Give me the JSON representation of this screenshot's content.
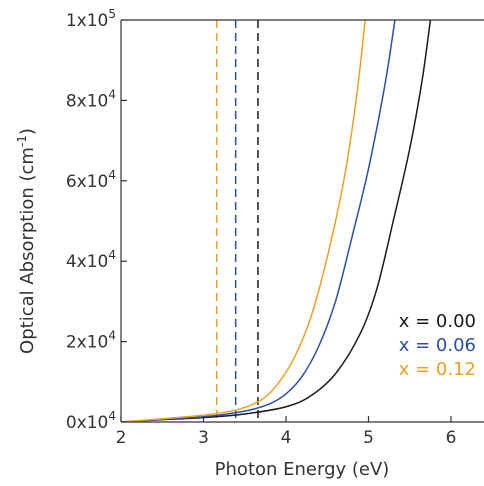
{
  "chart_data": {
    "type": "line",
    "title": "",
    "xlabel": "Photon Energy (eV)",
    "ylabel": "Optical Absorption (cm-1)",
    "xlim": [
      2,
      6.4
    ],
    "ylim": [
      0,
      100000
    ],
    "grid": false,
    "legend_position": "bottom-right",
    "x_ticks": [
      {
        "value": 2,
        "label": "2"
      },
      {
        "value": 3,
        "label": "3"
      },
      {
        "value": 4,
        "label": "4"
      },
      {
        "value": 5,
        "label": "5"
      },
      {
        "value": 6,
        "label": "6"
      }
    ],
    "y_ticks": [
      {
        "value": 0,
        "mantissa": "0x10",
        "exponent": "4"
      },
      {
        "value": 20000,
        "mantissa": "2x10",
        "exponent": "4"
      },
      {
        "value": 40000,
        "mantissa": "4x10",
        "exponent": "4"
      },
      {
        "value": 60000,
        "mantissa": "6x10",
        "exponent": "4"
      },
      {
        "value": 80000,
        "mantissa": "8x10",
        "exponent": "4"
      },
      {
        "value": 100000,
        "mantissa": "1x10",
        "exponent": "5"
      }
    ],
    "series": [
      {
        "name": "x = 0.00",
        "color": "#1a1a1a",
        "bandgap_eV": 3.66,
        "points": [
          [
            2.0,
            0
          ],
          [
            2.5,
            600
          ],
          [
            3.0,
            1100
          ],
          [
            3.5,
            2000
          ],
          [
            4.0,
            3800
          ],
          [
            4.3,
            6500
          ],
          [
            4.6,
            12000
          ],
          [
            4.9,
            22000
          ],
          [
            5.1,
            33000
          ],
          [
            5.3,
            50000
          ],
          [
            5.5,
            68000
          ],
          [
            5.65,
            85000
          ],
          [
            5.75,
            100000
          ]
        ]
      },
      {
        "name": "x = 0.06",
        "color": "#2b4fa8",
        "bandgap_eV": 3.39,
        "points": [
          [
            2.0,
            0
          ],
          [
            2.5,
            700
          ],
          [
            3.0,
            1300
          ],
          [
            3.5,
            2700
          ],
          [
            3.8,
            4500
          ],
          [
            4.0,
            7000
          ],
          [
            4.2,
            11500
          ],
          [
            4.4,
            19000
          ],
          [
            4.6,
            30000
          ],
          [
            4.8,
            46000
          ],
          [
            5.0,
            63000
          ],
          [
            5.2,
            84000
          ],
          [
            5.32,
            100000
          ]
        ]
      },
      {
        "name": "x = 0.12",
        "color": "#f0a020",
        "bandgap_eV": 3.16,
        "points": [
          [
            2.0,
            0
          ],
          [
            2.5,
            800
          ],
          [
            3.0,
            1700
          ],
          [
            3.4,
            3000
          ],
          [
            3.7,
            5500
          ],
          [
            3.9,
            9500
          ],
          [
            4.1,
            16000
          ],
          [
            4.3,
            26000
          ],
          [
            4.5,
            41000
          ],
          [
            4.7,
            60000
          ],
          [
            4.85,
            80000
          ],
          [
            4.96,
            100000
          ]
        ]
      }
    ]
  }
}
